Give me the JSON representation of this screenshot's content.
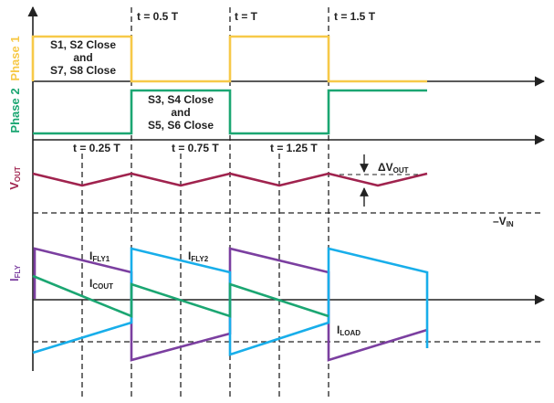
{
  "colors": {
    "phase1": "#F7C948",
    "phase2": "#1BA672",
    "vout": "#A0234E",
    "ifly1": "#7B3FA0",
    "ifly2": "#18AEEA",
    "icout": "#1BA672",
    "axis": "#222222",
    "dashed": "#222222"
  },
  "labels": {
    "phase1": "Phase 1",
    "phase2": "Phase 2",
    "vout_main": "V",
    "vout_sub": "OUT",
    "ifly_main": "I",
    "ifly_sub": "FLY",
    "t_05": "t = 0.5 T",
    "t_1": "t = T",
    "t_15": "t = 1.5 T",
    "t_025": "t = 0.25 T",
    "t_075": "t = 0.75 T",
    "t_125": "t = 1.25 T",
    "phase1_text": [
      "S1, S2 Close",
      "and",
      "S7, S8 Close"
    ],
    "phase2_text": [
      "S3, S4 Close",
      "and",
      "S5, S6 Close"
    ],
    "delta_main": "ΔV",
    "delta_sub": "OUT",
    "vin_main": "–V",
    "vin_sub": "IN",
    "ifly1_main": "I",
    "ifly1_sub": "FLY1",
    "ifly2_main": "I",
    "ifly2_sub": "FLY2",
    "icout_main": "I",
    "icout_sub": "COUT",
    "iload_main": "I",
    "iload_sub": "LOAD"
  },
  "timing": {
    "phase1_high_intervals": [
      [
        0,
        0.5
      ],
      [
        1.0,
        1.5
      ]
    ],
    "phase2_high_intervals": [
      [
        0.5,
        1.0
      ],
      [
        1.5,
        2.0
      ]
    ]
  }
}
